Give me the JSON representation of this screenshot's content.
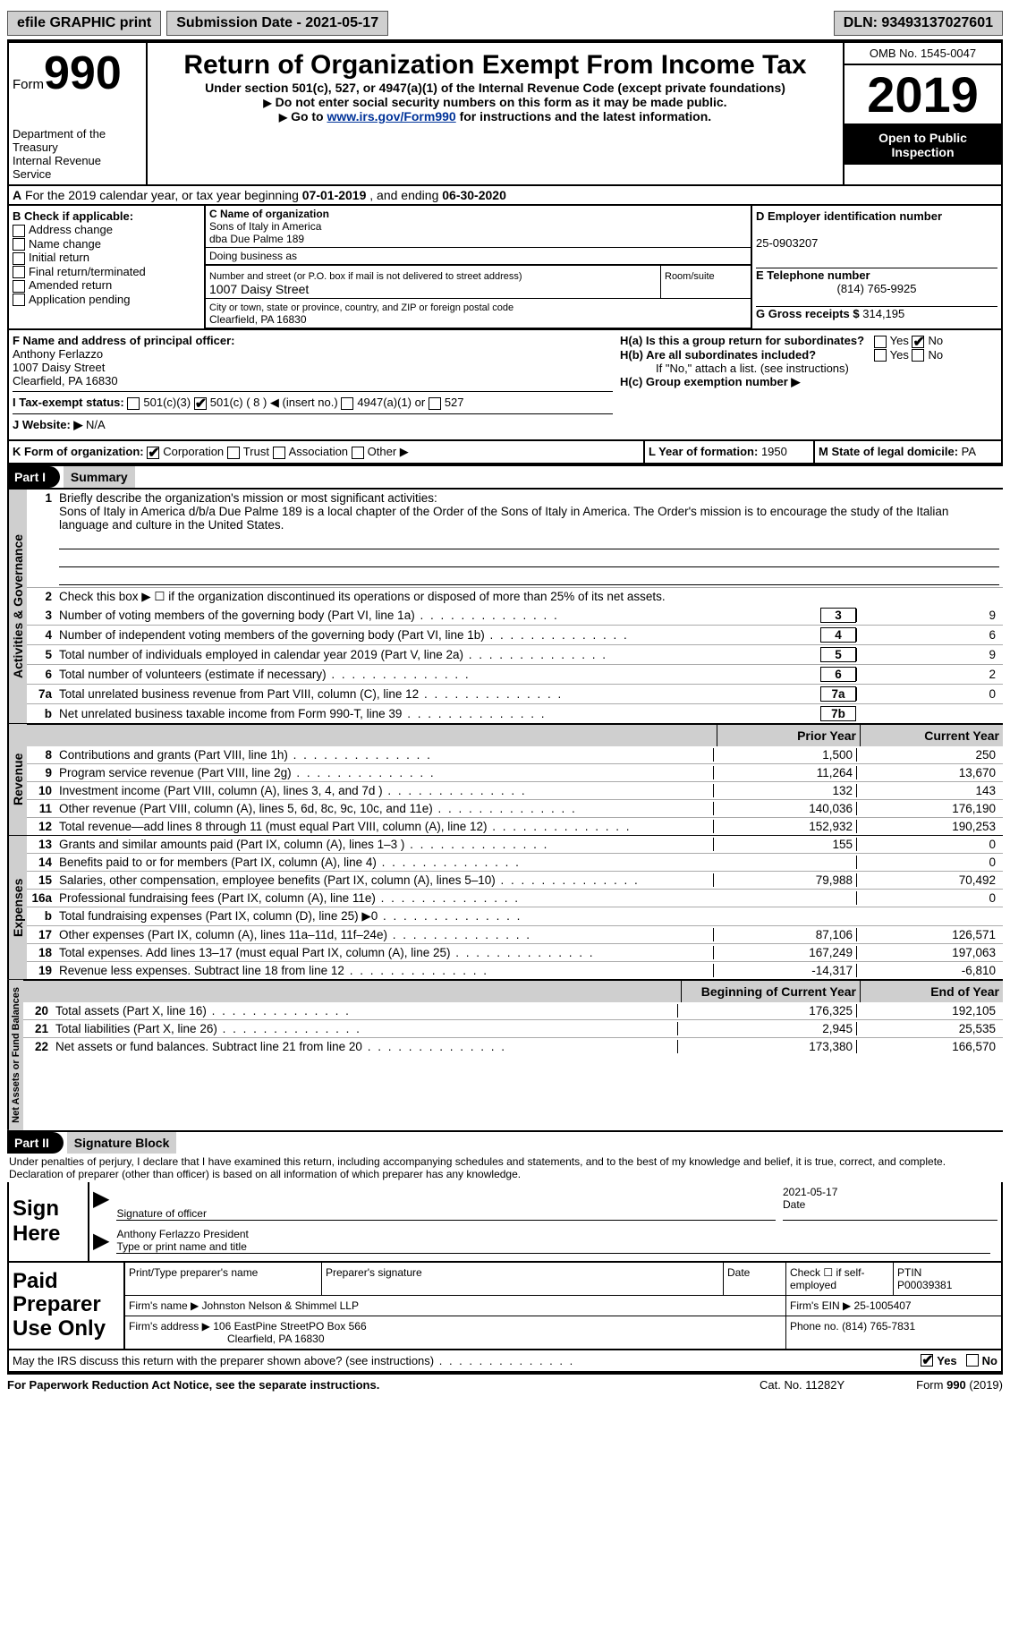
{
  "hdr": {
    "efile": "efile GRAPHIC print",
    "submission": "Submission Date - 2021-05-17",
    "dln": "DLN: 93493137027601"
  },
  "top": {
    "form_label": "Form",
    "form_num": "990",
    "title": "Return of Organization Exempt From Income Tax",
    "sub1": "Under section 501(c), 527, or 4947(a)(1) of the Internal Revenue Code (except private foundations)",
    "sub2_a": "Do not enter social security numbers on this form as it may be made public.",
    "sub2_b": "Go to ",
    "link": "www.irs.gov/Form990",
    "sub2_c": " for instructions and the latest information.",
    "dept": "Department of the Treasury\nInternal Revenue Service",
    "omb": "OMB No. 1545-0047",
    "year": "2019",
    "open": "Open to Public Inspection"
  },
  "rowA": {
    "text_a": "For the 2019 calendar year, or tax year beginning ",
    "begin": "07-01-2019",
    "text_b": " , and ending ",
    "end": "06-30-2020"
  },
  "colB": {
    "hdr": "B Check if applicable:",
    "items": [
      "Address change",
      "Name change",
      "Initial return",
      "Final return/terminated",
      "Amended return",
      "Application pending"
    ],
    "pending_lbl": "Pending"
  },
  "colC": {
    "name_lbl": "C Name of organization",
    "name1": "Sons of Italy in America",
    "name2": "dba Due Palme 189",
    "dba_lbl": "Doing business as",
    "addr_lbl": "Number and street (or P.O. box if mail is not delivered to street address)",
    "room_lbl": "Room/suite",
    "addr": "1007 Daisy Street",
    "city_lbl": "City or town, state or province, country, and ZIP or foreign postal code",
    "city": "Clearfield, PA   16830"
  },
  "colD": {
    "ein_lbl": "D Employer identification number",
    "ein": "25-0903207",
    "tel_lbl": "E Telephone number",
    "tel": "(814) 765-9925",
    "gross_lbl": "G Gross receipts $",
    "gross": "314,195"
  },
  "rowF": {
    "f_lbl": "F  Name and address of principal officer:",
    "f_name": "Anthony Ferlazzo",
    "f_addr1": "1007 Daisy Street",
    "f_addr2": "Clearfield, PA   16830",
    "ha": "H(a)  Is this a group return for subordinates?",
    "hb": "H(b)  Are all subordinates included?",
    "h_note": "If \"No,\" attach a list. (see instructions)",
    "hc": "H(c)  Group exemption number ▶",
    "yes": "Yes",
    "no": "No",
    "tax_lbl": "I   Tax-exempt status:",
    "t1": "501(c)(3)",
    "t2": "501(c) ( 8 ) ◀ (insert no.)",
    "t3": "4947(a)(1) or",
    "t4": "527",
    "web_lbl": "J   Website: ▶",
    "web": "N/A"
  },
  "rowK": {
    "k_lbl": "K Form of organization:",
    "opts": [
      "Corporation",
      "Trust",
      "Association",
      "Other ▶"
    ],
    "l_lbl": "L Year of formation:",
    "l_val": "1950",
    "m_lbl": "M State of legal domicile:",
    "m_val": "PA"
  },
  "part1": {
    "bar": "Part I",
    "title": "Summary",
    "q1": "Briefly describe the organization's mission or most significant activities:",
    "mission": "Sons of Italy in America d/b/a Due Palme 189 is a local chapter of the Order of the Sons of Italy in America. The Order's mission is to encourage the study of the Italian language and culture in the United States.",
    "q2": "Check this box ▶ ☐ if the organization discontinued its operations or disposed of more than 25% of its net assets."
  },
  "gov": {
    "vtab": "Activities & Governance",
    "rows": [
      {
        "n": "1",
        "t": ""
      },
      {
        "n": "2",
        "t": ""
      },
      {
        "n": "3",
        "t": "Number of voting members of the governing body (Part VI, line 1a)",
        "b": "3",
        "v": "9"
      },
      {
        "n": "4",
        "t": "Number of independent voting members of the governing body (Part VI, line 1b)",
        "b": "4",
        "v": "6"
      },
      {
        "n": "5",
        "t": "Total number of individuals employed in calendar year 2019 (Part V, line 2a)",
        "b": "5",
        "v": "9"
      },
      {
        "n": "6",
        "t": "Total number of volunteers (estimate if necessary)",
        "b": "6",
        "v": "2"
      },
      {
        "n": "7a",
        "t": "Total unrelated business revenue from Part VIII, column (C), line 12",
        "b": "7a",
        "v": "0"
      },
      {
        "n": "b",
        "t": "Net unrelated business taxable income from Form 990-T, line 39",
        "b": "7b",
        "v": ""
      }
    ]
  },
  "rev": {
    "vtab": "Revenue",
    "hdr_prior": "Prior Year",
    "hdr_curr": "Current Year",
    "rows": [
      {
        "n": "8",
        "t": "Contributions and grants (Part VIII, line 1h)",
        "p": "1,500",
        "c": "250"
      },
      {
        "n": "9",
        "t": "Program service revenue (Part VIII, line 2g)",
        "p": "11,264",
        "c": "13,670"
      },
      {
        "n": "10",
        "t": "Investment income (Part VIII, column (A), lines 3, 4, and 7d )",
        "p": "132",
        "c": "143"
      },
      {
        "n": "11",
        "t": "Other revenue (Part VIII, column (A), lines 5, 6d, 8c, 9c, 10c, and 11e)",
        "p": "140,036",
        "c": "176,190"
      },
      {
        "n": "12",
        "t": "Total revenue—add lines 8 through 11 (must equal Part VIII, column (A), line 12)",
        "p": "152,932",
        "c": "190,253"
      }
    ]
  },
  "exp": {
    "vtab": "Expenses",
    "rows": [
      {
        "n": "13",
        "t": "Grants and similar amounts paid (Part IX, column (A), lines 1–3 )",
        "p": "155",
        "c": "0"
      },
      {
        "n": "14",
        "t": "Benefits paid to or for members (Part IX, column (A), line 4)",
        "p": "",
        "c": "0"
      },
      {
        "n": "15",
        "t": "Salaries, other compensation, employee benefits (Part IX, column (A), lines 5–10)",
        "p": "79,988",
        "c": "70,492"
      },
      {
        "n": "16a",
        "t": "Professional fundraising fees (Part IX, column (A), line 11e)",
        "p": "",
        "c": "0"
      },
      {
        "n": "b",
        "t": "Total fundraising expenses (Part IX, column (D), line 25) ▶0",
        "p": "",
        "c": "",
        "shade": true
      },
      {
        "n": "17",
        "t": "Other expenses (Part IX, column (A), lines 11a–11d, 11f–24e)",
        "p": "87,106",
        "c": "126,571"
      },
      {
        "n": "18",
        "t": "Total expenses. Add lines 13–17 (must equal Part IX, column (A), line 25)",
        "p": "167,249",
        "c": "197,063"
      },
      {
        "n": "19",
        "t": "Revenue less expenses. Subtract line 18 from line 12",
        "p": "-14,317",
        "c": "-6,810"
      }
    ]
  },
  "net": {
    "vtab": "Net Assets or Fund Balances",
    "hdr_prior": "Beginning of Current Year",
    "hdr_curr": "End of Year",
    "rows": [
      {
        "n": "20",
        "t": "Total assets (Part X, line 16)",
        "p": "176,325",
        "c": "192,105"
      },
      {
        "n": "21",
        "t": "Total liabilities (Part X, line 26)",
        "p": "2,945",
        "c": "25,535"
      },
      {
        "n": "22",
        "t": "Net assets or fund balances. Subtract line 21 from line 20",
        "p": "173,380",
        "c": "166,570"
      }
    ]
  },
  "part2": {
    "bar": "Part II",
    "title": "Signature Block",
    "decl": "Under penalties of perjury, I declare that I have examined this return, including accompanying schedules and statements, and to the best of my knowledge and belief, it is true, correct, and complete. Declaration of preparer (other than officer) is based on all information of which preparer has any knowledge."
  },
  "sign": {
    "lbl": "Sign Here",
    "sig_lbl": "Signature of officer",
    "date_lbl": "Date",
    "date": "2021-05-17",
    "name": "Anthony Ferlazzo  President",
    "name_lbl": "Type or print name and title"
  },
  "paid": {
    "lbl": "Paid Preparer Use Only",
    "h1": "Print/Type preparer's name",
    "h2": "Preparer's signature",
    "h3": "Date",
    "h4": "Check ☐ if self-employed",
    "h5": "PTIN",
    "ptin": "P00039381",
    "firm_lbl": "Firm's name    ▶",
    "firm": "Johnston Nelson & Shimmel LLP",
    "ein_lbl": "Firm's EIN ▶",
    "ein": "25-1005407",
    "addr_lbl": "Firm's address ▶",
    "addr1": "106 EastPine StreetPO Box 566",
    "addr2": "Clearfield, PA   16830",
    "phone_lbl": "Phone no.",
    "phone": "(814) 765-7831"
  },
  "discuss": {
    "q": "May the IRS discuss this return with the preparer shown above? (see instructions)",
    "yes": "Yes",
    "no": "No"
  },
  "foot": {
    "l": "For Paperwork Reduction Act Notice, see the separate instructions.",
    "c": "Cat. No. 11282Y",
    "r": "Form 990 (2019)"
  },
  "b_lbl": "b"
}
